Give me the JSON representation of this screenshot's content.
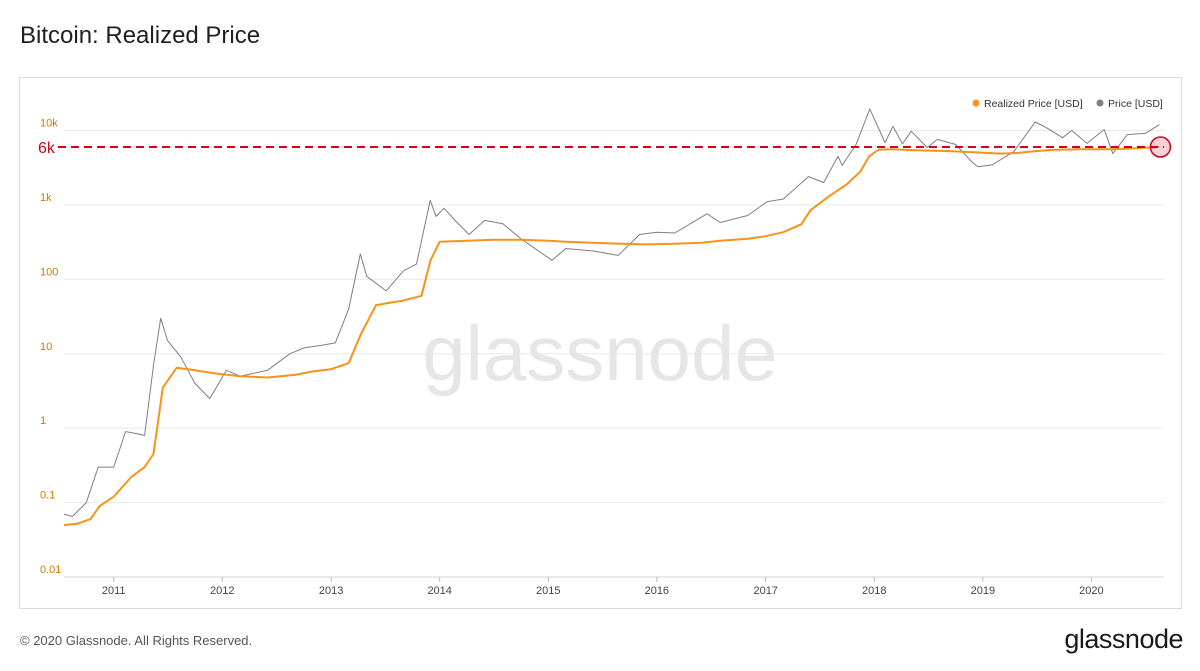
{
  "page": {
    "title": "Bitcoin: Realized Price",
    "footer": "© 2020 Glassnode. All Rights Reserved.",
    "brand": "glassnode",
    "watermark": "glassnode"
  },
  "colors": {
    "realized": "#f7931a",
    "price": "#7f7f7f",
    "reference_line": "#d0021b",
    "grid": "#e9e9e9",
    "axis_text": "#cc7a00"
  },
  "chart_data": {
    "type": "line",
    "title": "Bitcoin: Realized Price",
    "xlabel": "",
    "ylabel": "",
    "y_scale": "log",
    "ylim": [
      0.01,
      30000
    ],
    "xlim": [
      "2010-07-18",
      "2020-09-01"
    ],
    "x_ticks": [
      "2011",
      "2012",
      "2013",
      "2014",
      "2015",
      "2016",
      "2017",
      "2018",
      "2019",
      "2020"
    ],
    "y_ticks": [
      {
        "value": 0.01,
        "label": "0.01"
      },
      {
        "value": 0.1,
        "label": "0.1"
      },
      {
        "value": 1,
        "label": "1"
      },
      {
        "value": 10,
        "label": "10"
      },
      {
        "value": 100,
        "label": "100"
      },
      {
        "value": 1000,
        "label": "1k"
      },
      {
        "value": 10000,
        "label": "10k"
      }
    ],
    "legend": {
      "position": "top-right",
      "entries": [
        "Realized Price [USD]",
        "Price [USD]"
      ]
    },
    "annotations": [
      {
        "type": "horizontal-line",
        "value": 6000,
        "label": "6k",
        "style": "dashed"
      },
      {
        "type": "circle-marker",
        "x": "2020-08-20",
        "y": 6000
      }
    ],
    "series": [
      {
        "name": "Realized Price [USD]",
        "x": [
          "2010-07-18",
          "2010-09-01",
          "2010-10-15",
          "2010-11-15",
          "2011-01-01",
          "2011-03-01",
          "2011-04-15",
          "2011-05-15",
          "2011-06-15",
          "2011-08-01",
          "2011-10-01",
          "2011-12-01",
          "2012-03-01",
          "2012-06-01",
          "2012-09-01",
          "2012-11-01",
          "2013-01-01",
          "2013-03-01",
          "2013-04-10",
          "2013-06-01",
          "2013-09-01",
          "2013-11-01",
          "2013-12-01",
          "2014-01-01",
          "2014-04-01",
          "2014-07-01",
          "2014-10-01",
          "2015-01-01",
          "2015-03-01",
          "2015-06-01",
          "2015-09-01",
          "2015-12-01",
          "2016-03-01",
          "2016-06-01",
          "2016-08-01",
          "2016-11-01",
          "2017-01-01",
          "2017-03-01",
          "2017-05-01",
          "2017-06-01",
          "2017-08-01",
          "2017-10-01",
          "2017-11-15",
          "2017-12-15",
          "2018-01-15",
          "2018-03-01",
          "2018-06-01",
          "2018-09-01",
          "2018-12-01",
          "2019-03-01",
          "2019-05-01",
          "2019-07-01",
          "2019-09-01",
          "2019-12-01",
          "2020-03-01",
          "2020-05-01",
          "2020-08-15"
        ],
        "values": [
          0.05,
          0.052,
          0.06,
          0.09,
          0.12,
          0.22,
          0.3,
          0.45,
          3.5,
          6.5,
          6.0,
          5.5,
          5.0,
          4.8,
          5.2,
          5.8,
          6.2,
          7.5,
          18,
          45,
          52,
          60,
          180,
          320,
          330,
          340,
          340,
          330,
          320,
          310,
          300,
          295,
          300,
          310,
          330,
          350,
          380,
          430,
          550,
          850,
          1300,
          1900,
          2800,
          4500,
          5500,
          5600,
          5400,
          5300,
          5100,
          4900,
          5000,
          5300,
          5500,
          5600,
          5600,
          5700,
          6000
        ]
      },
      {
        "name": "Price [USD]",
        "x": [
          "2010-07-18",
          "2010-08-15",
          "2010-10-01",
          "2010-11-10",
          "2011-01-01",
          "2011-02-10",
          "2011-03-15",
          "2011-04-15",
          "2011-05-15",
          "2011-06-08",
          "2011-07-01",
          "2011-08-15",
          "2011-10-01",
          "2011-11-20",
          "2012-01-15",
          "2012-03-01",
          "2012-06-01",
          "2012-08-15",
          "2012-10-01",
          "2012-12-01",
          "2013-01-15",
          "2013-03-01",
          "2013-04-09",
          "2013-05-01",
          "2013-07-05",
          "2013-09-01",
          "2013-10-15",
          "2013-11-30",
          "2013-12-20",
          "2014-01-15",
          "2014-02-25",
          "2014-04-10",
          "2014-06-01",
          "2014-08-01",
          "2014-10-01",
          "2015-01-14",
          "2015-03-01",
          "2015-06-01",
          "2015-08-24",
          "2015-11-04",
          "2016-01-01",
          "2016-03-01",
          "2016-06-18",
          "2016-08-01",
          "2016-11-01",
          "2017-01-05",
          "2017-03-01",
          "2017-05-25",
          "2017-07-15",
          "2017-09-01",
          "2017-09-15",
          "2017-11-01",
          "2017-12-17",
          "2018-02-06",
          "2018-03-05",
          "2018-04-06",
          "2018-05-05",
          "2018-06-28",
          "2018-08-01",
          "2018-10-01",
          "2018-11-25",
          "2018-12-15",
          "2019-02-01",
          "2019-04-15",
          "2019-06-26",
          "2019-08-01",
          "2019-09-26",
          "2019-10-27",
          "2019-12-17",
          "2020-02-13",
          "2020-03-13",
          "2020-05-01",
          "2020-07-01",
          "2020-08-17"
        ],
        "values": [
          0.07,
          0.065,
          0.1,
          0.3,
          0.3,
          0.9,
          0.85,
          0.8,
          7,
          30,
          15,
          9,
          4,
          2.5,
          6,
          5,
          6,
          10,
          12,
          13,
          14,
          40,
          220,
          110,
          70,
          130,
          160,
          1150,
          700,
          900,
          600,
          400,
          620,
          560,
          350,
          180,
          260,
          240,
          210,
          400,
          430,
          420,
          760,
          580,
          720,
          1100,
          1200,
          2400,
          2000,
          4500,
          3400,
          6500,
          19500,
          6900,
          11400,
          6600,
          9800,
          5900,
          7600,
          6500,
          3800,
          3250,
          3450,
          5200,
          13000,
          11000,
          8000,
          10000,
          6700,
          10300,
          4900,
          8800,
          9200,
          12000
        ]
      }
    ]
  }
}
